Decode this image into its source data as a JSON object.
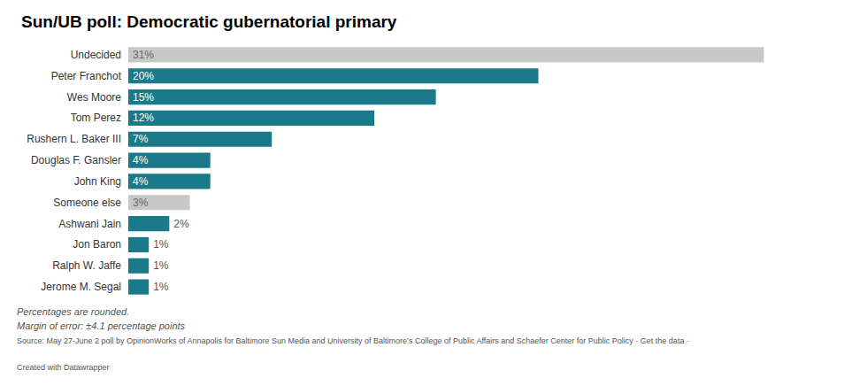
{
  "chart_data": {
    "type": "bar",
    "orientation": "horizontal",
    "title": "Sun/UB poll: Democratic gubernatorial primary",
    "categories": [
      "Undecided",
      "Peter Franchot",
      "Wes Moore",
      "Tom Perez",
      "Rushern L. Baker III",
      "Douglas F. Gansler",
      "John King",
      "Someone else",
      "Ashwani Jain",
      "Jon Baron",
      "Ralph W. Jaffe",
      "Jerome M. Segal"
    ],
    "values": [
      31,
      20,
      15,
      12,
      7,
      4,
      4,
      3,
      2,
      1,
      1,
      1
    ],
    "value_labels": [
      "31%",
      "20%",
      "15%",
      "12%",
      "7%",
      "4%",
      "4%",
      "3%",
      "2%",
      "1%",
      "1%",
      "1%"
    ],
    "colors": [
      "#c8c8c8",
      "#1a7a8a",
      "#1a7a8a",
      "#1a7a8a",
      "#1a7a8a",
      "#1a7a8a",
      "#1a7a8a",
      "#c8c8c8",
      "#1a7a8a",
      "#1a7a8a",
      "#1a7a8a",
      "#1a7a8a"
    ],
    "xlim": [
      0,
      34
    ],
    "data_labels": true,
    "tick_labels": "y",
    "grid": false,
    "annotations": [
      "Percentages are rounded.",
      "Margin of error: ±4.1 percentage points",
      "Source: May 27-June 2 poll by OpinionWorks of Annapolis for Baltimore Sun Media and University of Baltimore’s College of Public Affairs and Schaefer Center for Public Policy · Get the data ·",
      "Created with Datawrapper"
    ]
  }
}
